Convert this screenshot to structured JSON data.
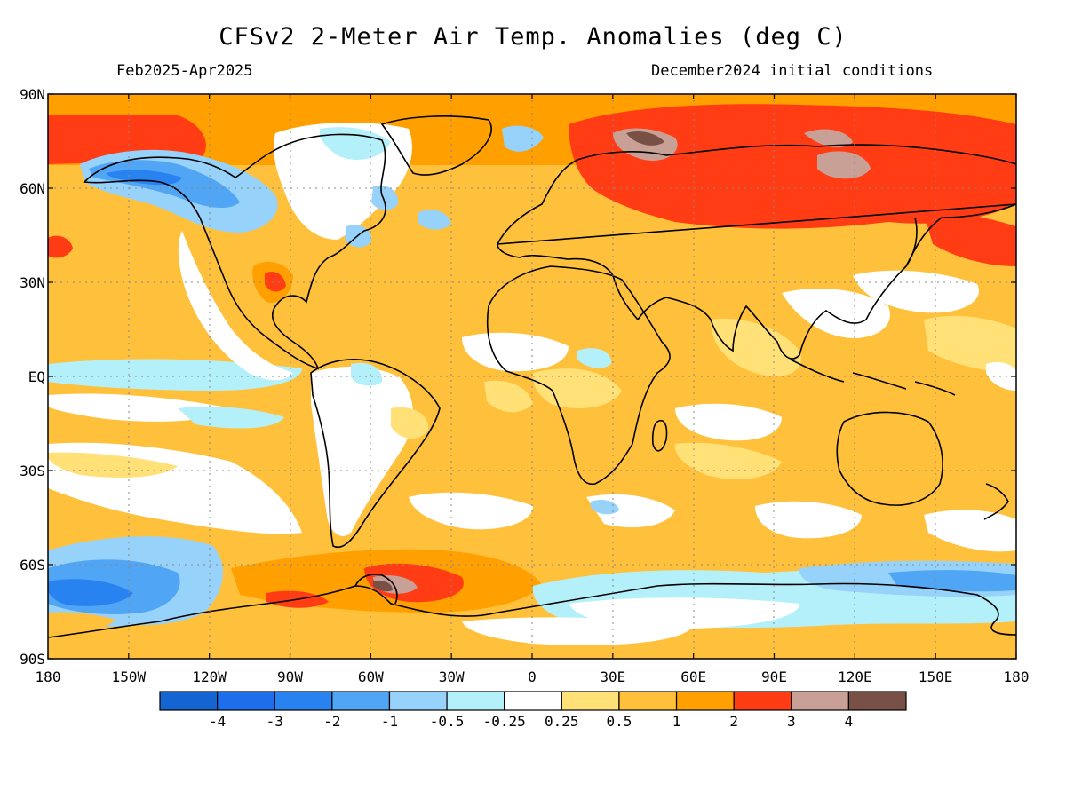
{
  "map": {
    "title": "CFSv2 2-Meter Air Temp. Anomalies (deg C)",
    "period": "Feb2025-Apr2025",
    "init": "December2024 initial conditions",
    "lat_labels": [
      "90N",
      "60N",
      "30N",
      "EQ",
      "30S",
      "60S",
      "90S"
    ],
    "lon_labels": [
      "180",
      "150W",
      "120W",
      "90W",
      "60W",
      "30W",
      "0",
      "30E",
      "60E",
      "90E",
      "120E",
      "150E",
      "180"
    ],
    "legend_colors": [
      "#1464d2",
      "#1e6eeb",
      "#2882f0",
      "#50a5f5",
      "#96d2fa",
      "#b4f0fa",
      "#ffffff",
      "#ffe178",
      "#ffc03c",
      "#ffa000",
      "#ff3c14",
      "#c8a096",
      "#785046"
    ],
    "legend_labels": [
      "-4",
      "-3",
      "-2",
      "-1",
      "-0.5",
      "-0.25",
      "0.25",
      "0.5",
      "1",
      "2",
      "3",
      "4"
    ]
  }
}
